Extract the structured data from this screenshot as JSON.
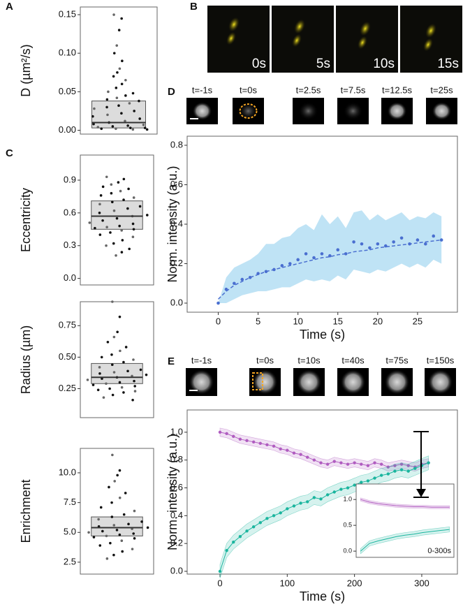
{
  "panel_labels": [
    "A",
    "B",
    "C",
    "D",
    "E"
  ],
  "image_strips": {
    "B": [
      "0s",
      "5s",
      "10s",
      "15s"
    ],
    "D": [
      "t=-1s",
      "t=0s",
      "t=2.5s",
      "t=7.5s",
      "t=12.5s",
      "t=25s"
    ],
    "E": [
      "t=-1s",
      "t=0s",
      "t=10s",
      "t=40s",
      "t=75s",
      "t=150s"
    ]
  },
  "chart_data": [
    {
      "type": "box",
      "ylabel": "D (µm²/s)",
      "ylim": [
        -0.005,
        0.16
      ],
      "yticks": [
        {
          "value": 0,
          "label": "0.00"
        },
        0.05,
        {
          "value": 0.1,
          "label": "0.10"
        },
        0.15
      ],
      "q1": 0.003,
      "median": 0.01,
      "q3": 0.038,
      "values": [
        0.15,
        0.145,
        0.13,
        0.11,
        0.1,
        0.09,
        0.08,
        0.075,
        0.07,
        0.065,
        0.06,
        0.055,
        0.05,
        0.048,
        0.045,
        0.042,
        0.04,
        0.038,
        0.035,
        0.032,
        0.03,
        0.028,
        0.025,
        0.022,
        0.02,
        0.018,
        0.015,
        0.012,
        0.01,
        0.008,
        0.007,
        0.006,
        0.005,
        0.004,
        0.003,
        0.003,
        0.002,
        0.002,
        0.001,
        0.001
      ]
    },
    {
      "type": "box",
      "ylabel": "Eccentricity",
      "ylim": [
        -0.06,
        1.13
      ],
      "yticks": [
        {
          "value": 0,
          "label": "0.0"
        },
        0.3,
        0.6,
        0.9
      ],
      "q1": 0.45,
      "median": 0.57,
      "q3": 0.71,
      "values": [
        0.93,
        0.91,
        0.88,
        0.86,
        0.84,
        0.82,
        0.8,
        0.78,
        0.76,
        0.74,
        0.72,
        0.7,
        0.68,
        0.66,
        0.64,
        0.62,
        0.6,
        0.58,
        0.57,
        0.55,
        0.53,
        0.51,
        0.5,
        0.48,
        0.47,
        0.46,
        0.45,
        0.44,
        0.42,
        0.4,
        0.38,
        0.35,
        0.32,
        0.3,
        0.27,
        0.24,
        0.21
      ]
    },
    {
      "type": "box",
      "ylabel": "Radius (µm)",
      "ylim": [
        0.02,
        0.94
      ],
      "yticks": [
        0.25,
        {
          "value": 0.5,
          "label": "0.50"
        },
        0.75
      ],
      "q1": 0.29,
      "median": 0.34,
      "q3": 0.45,
      "values": [
        0.94,
        0.82,
        0.7,
        0.66,
        0.62,
        0.58,
        0.55,
        0.52,
        0.5,
        0.48,
        0.46,
        0.44,
        0.42,
        0.4,
        0.39,
        0.38,
        0.37,
        0.36,
        0.35,
        0.34,
        0.33,
        0.32,
        0.31,
        0.3,
        0.29,
        0.28,
        0.27,
        0.26,
        0.25,
        0.24,
        0.23,
        0.22,
        0.2,
        0.18,
        0.16
      ]
    },
    {
      "type": "box",
      "ylabel": "Enrichment",
      "ylim": [
        1.5,
        12.05
      ],
      "yticks": [
        2.5,
        {
          "value": 5,
          "label": "5.0"
        },
        7.5,
        {
          "value": 10,
          "label": "10.0"
        }
      ],
      "q1": 4.7,
      "median": 5.4,
      "q3": 6.3,
      "values": [
        11.5,
        10.2,
        9.8,
        9.3,
        8.8,
        8.3,
        7.9,
        7.5,
        7.1,
        6.8,
        6.5,
        6.3,
        6.1,
        5.9,
        5.7,
        5.6,
        5.5,
        5.4,
        5.3,
        5.2,
        5.1,
        5.0,
        4.9,
        4.8,
        4.7,
        4.6,
        4.5,
        4.3,
        4.1,
        3.9,
        3.6,
        3.4,
        3.1,
        2.8
      ]
    },
    {
      "type": "scatter",
      "xlabel": "Time (s)",
      "ylabel": "Norm. intensity (a.u.)",
      "xlim": [
        -3.9,
        30
      ],
      "ylim": [
        -0.046,
        0.846
      ],
      "xticks": [
        0,
        5,
        10,
        15,
        20,
        25
      ],
      "yticks": [
        {
          "value": 0,
          "label": "0.0"
        },
        0.2,
        0.4,
        0.6,
        0.8
      ],
      "color": "#4a6fd0",
      "band_color": "#a9d9f2",
      "x": [
        0,
        1,
        2,
        3,
        4,
        5,
        6,
        7,
        8,
        9,
        10,
        11,
        12,
        13,
        14,
        15,
        16,
        17,
        18,
        19,
        20,
        21,
        22,
        23,
        24,
        25,
        26,
        27,
        28
      ],
      "values": [
        0.0,
        0.07,
        0.1,
        0.12,
        0.13,
        0.15,
        0.16,
        0.17,
        0.19,
        0.2,
        0.22,
        0.25,
        0.23,
        0.25,
        0.24,
        0.27,
        0.25,
        0.31,
        0.3,
        0.28,
        0.3,
        0.29,
        0.31,
        0.33,
        0.3,
        0.32,
        0.3,
        0.34,
        0.32
      ],
      "lower": [
        0,
        0,
        0.02,
        0.04,
        0.05,
        0.06,
        0.06,
        0.07,
        0.08,
        0.08,
        0.1,
        0.12,
        0.11,
        0.12,
        0.11,
        0.14,
        0.12,
        0.17,
        0.16,
        0.15,
        0.17,
        0.16,
        0.18,
        0.2,
        0.18,
        0.2,
        0.18,
        0.22,
        0.2
      ],
      "upper": [
        0.0,
        0.13,
        0.18,
        0.2,
        0.22,
        0.25,
        0.3,
        0.3,
        0.33,
        0.34,
        0.38,
        0.4,
        0.37,
        0.45,
        0.4,
        0.44,
        0.38,
        0.46,
        0.47,
        0.42,
        0.45,
        0.42,
        0.44,
        0.46,
        0.42,
        0.44,
        0.43,
        0.46,
        0.44
      ],
      "fit": [
        0.02,
        0.06,
        0.09,
        0.11,
        0.13,
        0.145,
        0.16,
        0.17,
        0.18,
        0.19,
        0.2,
        0.21,
        0.22,
        0.23,
        0.235,
        0.245,
        0.25,
        0.26,
        0.265,
        0.27,
        0.28,
        0.285,
        0.29,
        0.295,
        0.3,
        0.305,
        0.31,
        0.315,
        0.32
      ]
    },
    {
      "type": "line",
      "xlabel": "Time (s)",
      "ylabel": "Norm. intensity (a.u.)",
      "xlim": [
        -48.8,
        353
      ],
      "ylim": [
        -0.02,
        1.16
      ],
      "xticks": [
        0,
        100,
        200,
        300
      ],
      "yticks": [
        {
          "value": 0,
          "label": "0.0"
        },
        0.2,
        0.4,
        0.6,
        0.8,
        {
          "value": 1,
          "label": "1.0"
        }
      ],
      "x": [
        0,
        10,
        20,
        30,
        40,
        50,
        60,
        70,
        80,
        90,
        100,
        110,
        120,
        130,
        140,
        150,
        160,
        170,
        180,
        190,
        200,
        210,
        220,
        230,
        240,
        250,
        260,
        270,
        280,
        290,
        300,
        310
      ],
      "series": [
        {
          "color": "#b05cc0",
          "error": 0.03,
          "values": [
            1.0,
            0.99,
            0.97,
            0.95,
            0.94,
            0.93,
            0.92,
            0.91,
            0.9,
            0.88,
            0.87,
            0.85,
            0.84,
            0.82,
            0.8,
            0.78,
            0.77,
            0.79,
            0.78,
            0.77,
            0.78,
            0.77,
            0.76,
            0.78,
            0.77,
            0.75,
            0.76,
            0.77,
            0.76,
            0.75,
            0.77,
            0.78
          ]
        },
        {
          "color": "#1ab59e",
          "error": 0.05,
          "values": [
            0,
            0.15,
            0.21,
            0.25,
            0.29,
            0.32,
            0.35,
            0.38,
            0.4,
            0.42,
            0.45,
            0.47,
            0.49,
            0.5,
            0.53,
            0.52,
            0.55,
            0.57,
            0.59,
            0.6,
            0.62,
            0.64,
            0.65,
            0.67,
            0.69,
            0.7,
            0.72,
            0.73,
            0.72,
            0.74,
            0.76,
            0.78
          ]
        }
      ]
    },
    {
      "type": "line",
      "annotation": "0-300s",
      "xlim": [
        -15,
        315
      ],
      "ylim": [
        -0.12,
        1.3
      ],
      "yticks": [
        {
          "value": 0,
          "label": "0.0"
        },
        0.5,
        {
          "value": 1,
          "label": "1.0"
        }
      ],
      "x": [
        0,
        30,
        60,
        90,
        120,
        150,
        180,
        210,
        240,
        270,
        300
      ],
      "series": [
        {
          "color": "#b05cc0",
          "error": 0.03,
          "values": [
            1.0,
            0.95,
            0.92,
            0.9,
            0.88,
            0.87,
            0.86,
            0.86,
            0.85,
            0.85,
            0.85
          ]
        },
        {
          "color": "#1ab59e",
          "error": 0.05,
          "values": [
            0.0,
            0.15,
            0.2,
            0.24,
            0.28,
            0.31,
            0.33,
            0.36,
            0.38,
            0.4,
            0.42
          ]
        }
      ]
    }
  ]
}
